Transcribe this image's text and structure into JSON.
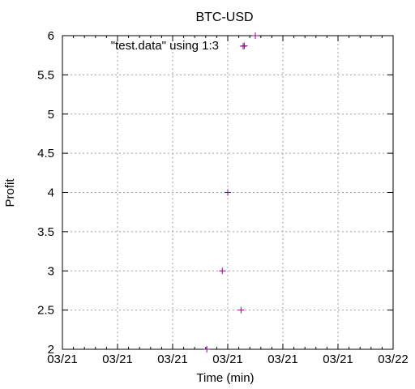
{
  "chart_data": {
    "type": "scatter",
    "title": "BTC-USD",
    "xlabel": "Time (min)",
    "ylabel": "Profit",
    "x_tick_labels": [
      "03/21",
      "03/21",
      "03/21",
      "03/21",
      "03/21",
      "03/21",
      "03/22"
    ],
    "y_tick_labels": [
      "2",
      "2.5",
      "3",
      "3.5",
      "4",
      "4.5",
      "5",
      "5.5",
      "6"
    ],
    "xlim": [
      0,
      6
    ],
    "ylim": [
      2,
      6
    ],
    "grid": true,
    "legend_position": "top-left",
    "series": [
      {
        "name": "\"test.data\" using 1:3",
        "color": "#990099",
        "marker": "plus",
        "points": [
          {
            "x": 2.62,
            "y": 2.0
          },
          {
            "x": 2.9,
            "y": 3.0
          },
          {
            "x": 3.0,
            "y": 4.0
          },
          {
            "x": 3.24,
            "y": 2.5
          },
          {
            "x": 3.3,
            "y": 5.87
          },
          {
            "x": 3.5,
            "y": 6.0
          }
        ]
      }
    ]
  }
}
